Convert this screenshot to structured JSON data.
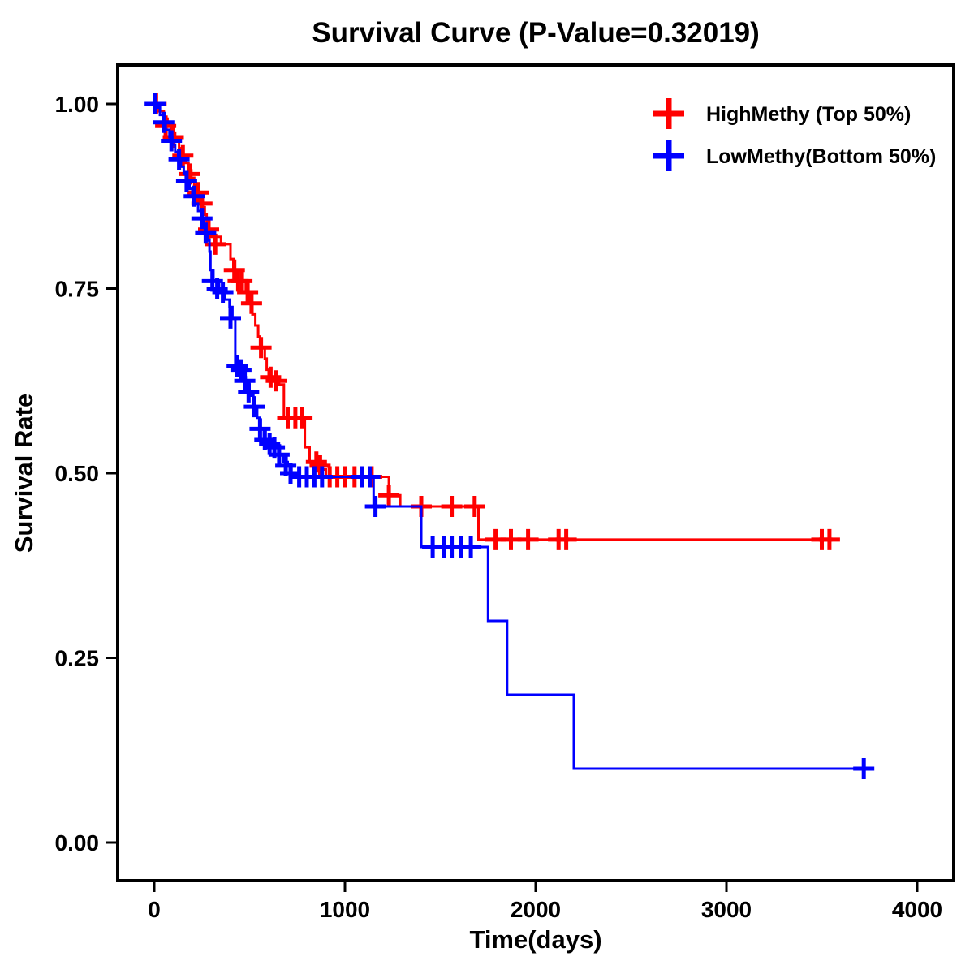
{
  "chart_data": {
    "type": "line",
    "subtype": "kaplan_meier_step_survival",
    "title": "Survival Curve (P-Value=0.32019)",
    "p_value": "0.32019",
    "xlabel": "Time(days)",
    "ylabel": "Survival Rate",
    "xlim": [
      -150,
      4150
    ],
    "ylim": [
      -0.05,
      1.05
    ],
    "grid": false,
    "legend_position": "top-right",
    "xticks": [
      0,
      1000,
      2000,
      3000,
      4000
    ],
    "yticks": [
      0,
      0.25,
      0.5,
      0.75,
      1
    ],
    "ytick_labels": [
      "0.00",
      "0.25",
      "0.50",
      "0.75",
      "1.00"
    ],
    "frame_color": "#000000",
    "series": [
      {
        "id": "highmethy",
        "label": "HighMethy (Top 50%)",
        "color": "#FF0000",
        "marker": "plus",
        "steps": [
          [
            0,
            1.0
          ],
          [
            25,
            0.99
          ],
          [
            50,
            0.98
          ],
          [
            70,
            0.97
          ],
          [
            90,
            0.96
          ],
          [
            110,
            0.95
          ],
          [
            130,
            0.94
          ],
          [
            150,
            0.93
          ],
          [
            165,
            0.92
          ],
          [
            180,
            0.91
          ],
          [
            195,
            0.9
          ],
          [
            210,
            0.89
          ],
          [
            225,
            0.88
          ],
          [
            240,
            0.87
          ],
          [
            255,
            0.86
          ],
          [
            265,
            0.85
          ],
          [
            275,
            0.84
          ],
          [
            285,
            0.83
          ],
          [
            300,
            0.82
          ],
          [
            350,
            0.81
          ],
          [
            400,
            0.79
          ],
          [
            415,
            0.775
          ],
          [
            430,
            0.76
          ],
          [
            480,
            0.745
          ],
          [
            500,
            0.73
          ],
          [
            515,
            0.715
          ],
          [
            530,
            0.7
          ],
          [
            545,
            0.685
          ],
          [
            555,
            0.67
          ],
          [
            580,
            0.655
          ],
          [
            590,
            0.64
          ],
          [
            600,
            0.63
          ],
          [
            655,
            0.62
          ],
          [
            680,
            0.575
          ],
          [
            790,
            0.535
          ],
          [
            815,
            0.515
          ],
          [
            880,
            0.505
          ],
          [
            900,
            0.495
          ],
          [
            1230,
            0.47
          ],
          [
            1290,
            0.455
          ],
          [
            1700,
            0.41
          ],
          [
            3550,
            0.41
          ]
        ],
        "censors": [
          [
            10,
            1.0
          ],
          [
            60,
            0.97
          ],
          [
            100,
            0.955
          ],
          [
            150,
            0.93
          ],
          [
            185,
            0.905
          ],
          [
            230,
            0.88
          ],
          [
            250,
            0.865
          ],
          [
            285,
            0.83
          ],
          [
            320,
            0.81
          ],
          [
            420,
            0.775
          ],
          [
            440,
            0.76
          ],
          [
            460,
            0.76
          ],
          [
            490,
            0.745
          ],
          [
            510,
            0.73
          ],
          [
            560,
            0.67
          ],
          [
            610,
            0.63
          ],
          [
            640,
            0.625
          ],
          [
            700,
            0.575
          ],
          [
            740,
            0.575
          ],
          [
            775,
            0.575
          ],
          [
            850,
            0.515
          ],
          [
            870,
            0.51
          ],
          [
            920,
            0.495
          ],
          [
            960,
            0.495
          ],
          [
            1000,
            0.495
          ],
          [
            1050,
            0.495
          ],
          [
            1090,
            0.495
          ],
          [
            1140,
            0.495
          ],
          [
            1230,
            0.47
          ],
          [
            1400,
            0.455
          ],
          [
            1560,
            0.455
          ],
          [
            1680,
            0.455
          ],
          [
            1790,
            0.41
          ],
          [
            1870,
            0.41
          ],
          [
            1960,
            0.41
          ],
          [
            2120,
            0.41
          ],
          [
            2160,
            0.41
          ],
          [
            3500,
            0.41
          ],
          [
            3540,
            0.41
          ]
        ]
      },
      {
        "id": "lowmethy",
        "label": "LowMethy(Bottom 50%)",
        "color": "#0000FF",
        "marker": "plus",
        "steps": [
          [
            0,
            1.0
          ],
          [
            15,
            0.995
          ],
          [
            30,
            0.985
          ],
          [
            45,
            0.975
          ],
          [
            60,
            0.965
          ],
          [
            80,
            0.955
          ],
          [
            95,
            0.945
          ],
          [
            110,
            0.935
          ],
          [
            125,
            0.925
          ],
          [
            140,
            0.915
          ],
          [
            155,
            0.905
          ],
          [
            170,
            0.895
          ],
          [
            185,
            0.885
          ],
          [
            200,
            0.875
          ],
          [
            215,
            0.865
          ],
          [
            230,
            0.855
          ],
          [
            245,
            0.845
          ],
          [
            260,
            0.835
          ],
          [
            270,
            0.825
          ],
          [
            280,
            0.815
          ],
          [
            290,
            0.8
          ],
          [
            295,
            0.775
          ],
          [
            310,
            0.76
          ],
          [
            340,
            0.75
          ],
          [
            370,
            0.735
          ],
          [
            395,
            0.725
          ],
          [
            410,
            0.71
          ],
          [
            425,
            0.65
          ],
          [
            450,
            0.64
          ],
          [
            465,
            0.63
          ],
          [
            480,
            0.62
          ],
          [
            500,
            0.605
          ],
          [
            520,
            0.59
          ],
          [
            540,
            0.575
          ],
          [
            555,
            0.56
          ],
          [
            575,
            0.545
          ],
          [
            600,
            0.54
          ],
          [
            625,
            0.535
          ],
          [
            650,
            0.525
          ],
          [
            675,
            0.515
          ],
          [
            700,
            0.51
          ],
          [
            720,
            0.5
          ],
          [
            745,
            0.495
          ],
          [
            1150,
            0.455
          ],
          [
            1400,
            0.4
          ],
          [
            1750,
            0.3
          ],
          [
            1850,
            0.2
          ],
          [
            2200,
            0.1
          ],
          [
            3720,
            0.1
          ]
        ],
        "censors": [
          [
            5,
            1.0
          ],
          [
            50,
            0.975
          ],
          [
            90,
            0.95
          ],
          [
            130,
            0.925
          ],
          [
            170,
            0.895
          ],
          [
            210,
            0.875
          ],
          [
            250,
            0.845
          ],
          [
            270,
            0.825
          ],
          [
            305,
            0.76
          ],
          [
            330,
            0.75
          ],
          [
            360,
            0.745
          ],
          [
            400,
            0.71
          ],
          [
            435,
            0.645
          ],
          [
            455,
            0.64
          ],
          [
            475,
            0.625
          ],
          [
            495,
            0.61
          ],
          [
            525,
            0.59
          ],
          [
            555,
            0.56
          ],
          [
            580,
            0.545
          ],
          [
            605,
            0.54
          ],
          [
            630,
            0.535
          ],
          [
            655,
            0.525
          ],
          [
            690,
            0.51
          ],
          [
            715,
            0.5
          ],
          [
            760,
            0.495
          ],
          [
            800,
            0.495
          ],
          [
            840,
            0.495
          ],
          [
            880,
            0.495
          ],
          [
            1090,
            0.495
          ],
          [
            1130,
            0.495
          ],
          [
            1160,
            0.455
          ],
          [
            1460,
            0.4
          ],
          [
            1520,
            0.4
          ],
          [
            1560,
            0.4
          ],
          [
            1610,
            0.4
          ],
          [
            1660,
            0.4
          ],
          [
            3720,
            0.1
          ]
        ]
      }
    ]
  }
}
